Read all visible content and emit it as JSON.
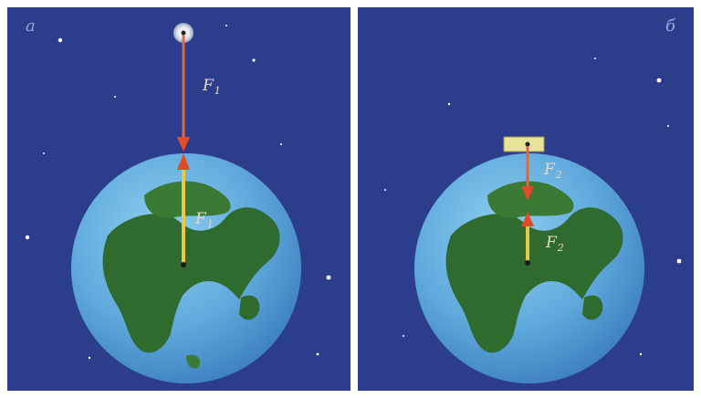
{
  "panels": [
    {
      "corner_label": "а",
      "top_force": {
        "symbol": "F",
        "subscript": "1"
      },
      "bottom_force": {
        "symbol": "F",
        "subscript": "1"
      }
    },
    {
      "corner_label": "б",
      "top_force": {
        "symbol": "F",
        "subscript": "2"
      },
      "bottom_force": {
        "symbol": "F",
        "subscript": "2"
      }
    }
  ],
  "colors": {
    "space": "#2c3d8c",
    "ocean": "#5ea8db",
    "land": "#2f6a2f",
    "arrow": "#c94a2c",
    "force_line": "#e6c94a",
    "moon": "#e9eef7",
    "block": "#e8e39a"
  },
  "icons": {
    "moon": "moon-icon",
    "block": "block-icon",
    "star": "star-icon"
  }
}
